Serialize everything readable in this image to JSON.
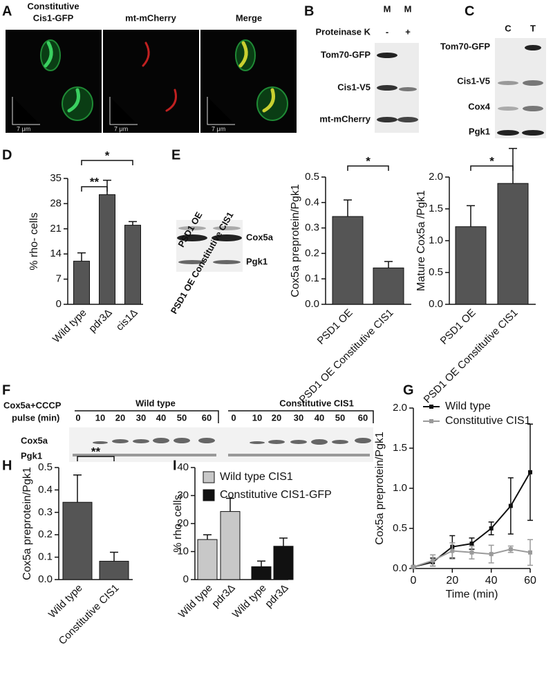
{
  "panel_labels": [
    "A",
    "B",
    "C",
    "D",
    "E",
    "F",
    "G",
    "H",
    "I"
  ],
  "micrographs": {
    "titles": [
      [
        "Constitutive",
        "Cis1-GFP"
      ],
      [
        "mt-mCherry"
      ],
      [
        "Merge"
      ]
    ],
    "scale_bar": "7 μm"
  },
  "blot_b": {
    "lanes": [
      "M",
      "M"
    ],
    "treatment": "Proteinase K",
    "treatment_signs": [
      "-",
      "+"
    ],
    "bands": [
      "Tom70-GFP",
      "Cis1-V5",
      "mt-mCherry"
    ]
  },
  "blot_c": {
    "lanes": [
      "C",
      "T"
    ],
    "bands": [
      "Tom70-GFP",
      "Cis1-V5",
      "Cox4",
      "Pgk1"
    ]
  },
  "blot_e": {
    "lanes": [
      "PSD1 OE",
      "PSD1 OE Constitutive CIS1"
    ],
    "bands": [
      "Cox5a",
      "Pgk1"
    ]
  },
  "blot_f": {
    "condition": [
      "Cox5a+CCCP",
      "pulse (min)"
    ],
    "groups": [
      "Wild type",
      "Constitutive CIS1"
    ],
    "times": [
      0,
      10,
      20,
      30,
      40,
      50,
      60,
      0,
      10,
      20,
      30,
      40,
      50,
      60
    ],
    "bands": [
      "Cox5a",
      "Pgk1"
    ]
  },
  "chart_data": [
    {
      "type": "bar",
      "y_label": "% rho- cells",
      "categories": [
        "Wild type",
        "pdr3Δ",
        "cis1Δ"
      ],
      "values": [
        12,
        30.5,
        22
      ],
      "errors": [
        2.3,
        4,
        1
      ],
      "color": "#555555",
      "ylim": [
        0,
        35
      ],
      "yticks": [
        0,
        7,
        14,
        21,
        28,
        35
      ],
      "annotations": [
        "**",
        "*"
      ]
    },
    {
      "type": "bar",
      "y_label": "Cox5a preprotein/Pgk1",
      "categories": [
        "PSD1 OE",
        "PSD1 OE Constitutive CIS1"
      ],
      "values": [
        0.345,
        0.143
      ],
      "errors": [
        0.065,
        0.025
      ],
      "color": "#555555",
      "ylim": [
        0,
        0.5
      ],
      "yticks": [
        {
          "value": 0,
          "label": "0.0"
        },
        0.1,
        0.2,
        0.3,
        0.4,
        0.5
      ],
      "annotations": [
        "*"
      ]
    },
    {
      "type": "bar",
      "y_label": "Mature Cox5a /Pgk1",
      "categories": [
        "PSD1 OE",
        "PSD1 OE Constitutive CIS1"
      ],
      "values": [
        1.22,
        1.9
      ],
      "errors": [
        0.33,
        0.55
      ],
      "color": "#555555",
      "ylim": [
        0,
        2
      ],
      "yticks": [
        {
          "value": 0,
          "label": "0.0"
        },
        0.5,
        {
          "value": 1,
          "label": "1.0"
        },
        1.5,
        {
          "value": 2,
          "label": "2.0"
        }
      ],
      "annotations": [
        "*"
      ]
    },
    {
      "type": "line",
      "y_label": "Cox5a preprotein/Pgk1",
      "x_label": "Time (min)",
      "x": [
        0,
        10,
        20,
        30,
        40,
        50,
        60
      ],
      "series": [
        {
          "name": "Wild type",
          "color": "#111111",
          "values": [
            0.02,
            0.08,
            0.27,
            0.31,
            0.5,
            0.78,
            1.2
          ],
          "errors": [
            0.01,
            0.05,
            0.14,
            0.07,
            0.08,
            0.35,
            0.6
          ]
        },
        {
          "name": "Constitutive CIS1",
          "color": "#9a9a9a",
          "values": [
            0.02,
            0.1,
            0.22,
            0.2,
            0.18,
            0.24,
            0.2
          ],
          "errors": [
            0.01,
            0.07,
            0.1,
            0.08,
            0.11,
            0.04,
            0.16
          ]
        }
      ],
      "xlim": [
        0,
        60
      ],
      "xticks": [
        0,
        20,
        40,
        60
      ],
      "ylim": [
        0,
        2
      ],
      "yticks": [
        {
          "value": 0,
          "label": "0.0"
        },
        0.5,
        {
          "value": 1,
          "label": "1.0"
        },
        1.5,
        {
          "value": 2,
          "label": "2.0"
        }
      ],
      "legend": "top-left"
    },
    {
      "type": "bar",
      "y_label": "Cox5a preprotein/Pgk1",
      "categories": [
        "Wild type",
        "Constitutive CIS1"
      ],
      "values": [
        0.345,
        0.082
      ],
      "errors": [
        0.122,
        0.04
      ],
      "color": "#555555",
      "ylim": [
        0,
        0.5
      ],
      "yticks": [
        {
          "value": 0,
          "label": "0.0"
        },
        0.1,
        0.2,
        0.3,
        0.4,
        0.5
      ],
      "annotations": [
        "**"
      ]
    },
    {
      "type": "bar",
      "y_label": "% rho- cells",
      "categories": [
        "Wild type",
        "pdr3Δ",
        "Wild type",
        "pdr3Δ"
      ],
      "series": [
        {
          "name": "Wild type CIS1",
          "color": "#c8c8c8",
          "values": [
            14.3,
            24.3,
            null,
            null
          ],
          "errors": [
            1.7,
            4.7,
            null,
            null
          ]
        },
        {
          "name": "Constitutive CIS1-GFP",
          "color": "#111111",
          "values": [
            null,
            null,
            4.6,
            11.9
          ],
          "errors": [
            null,
            null,
            2,
            2.9
          ]
        }
      ],
      "ylim": [
        0,
        40
      ],
      "yticks": [
        0,
        10,
        20,
        30,
        40
      ],
      "legend": "top-left"
    }
  ]
}
